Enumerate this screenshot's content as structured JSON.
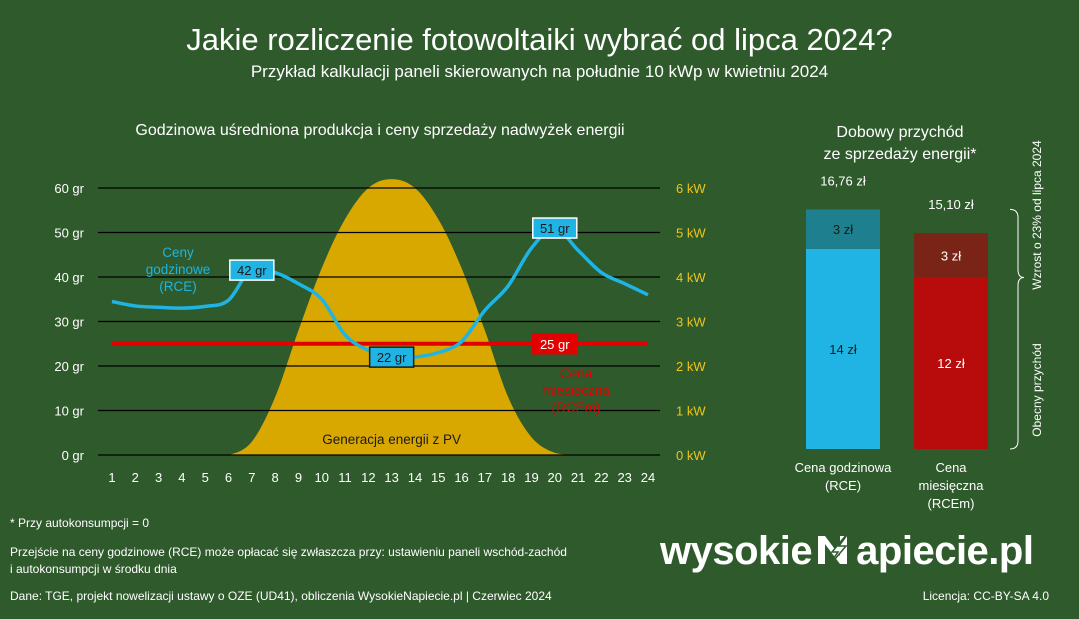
{
  "header": {
    "title": "Jakie rozliczenie fotowoltaiki wybrać od lipca 2024?",
    "subtitle": "Przykład kalkulacji paneli skierowanych na południe 10 kWp w kwietniu 2024"
  },
  "colors": {
    "background": "#2f5a2c",
    "rce": "#1fb4e3",
    "rce_bar_top": "#1e7f8e",
    "rcem": "#e30000",
    "rcem_bar": "#b80c0c",
    "rcem_bar_top": "#7a2418",
    "pv": "#d9a800",
    "kw_axis": "#f0c419"
  },
  "chart_data": [
    {
      "type": "area",
      "title": "Godzinowa uśredniona produkcja i ceny sprzedaży nadwyżek energii",
      "x": [
        1,
        2,
        3,
        4,
        5,
        6,
        7,
        8,
        9,
        10,
        11,
        12,
        13,
        14,
        15,
        16,
        17,
        18,
        19,
        20,
        21,
        22,
        23,
        24
      ],
      "xlim": [
        1,
        24
      ],
      "y_left": {
        "ticks": [
          "0 gr",
          "10 gr",
          "20 gr",
          "30 gr",
          "40 gr",
          "50 gr",
          "60 gr"
        ],
        "ylim": [
          0,
          60
        ]
      },
      "y_right": {
        "ticks": [
          "0 kW",
          "1 kW",
          "2 kW",
          "3 kW",
          "4 kW",
          "5 kW",
          "6 kW"
        ],
        "ylim": [
          0,
          6
        ]
      },
      "grid": true,
      "series": [
        {
          "name": "Generacja energii z PV",
          "kind": "area",
          "axis": "right",
          "values": [
            0,
            0,
            0,
            0,
            0,
            0,
            0.3,
            1.3,
            2.8,
            4.2,
            5.3,
            6.0,
            6.2,
            6.0,
            5.3,
            4.2,
            2.8,
            1.3,
            0.4,
            0.05,
            0,
            0,
            0,
            0
          ]
        },
        {
          "name": "Ceny godzinowe (RCE)",
          "kind": "line",
          "axis": "left",
          "values": [
            34.5,
            33.5,
            33.2,
            33.0,
            33.4,
            34.8,
            42.0,
            41.0,
            38.5,
            35.0,
            27.0,
            23.5,
            21.8,
            22.0,
            23.0,
            25.5,
            32.5,
            38.0,
            46.5,
            51.0,
            46.0,
            41.0,
            38.5,
            36.0
          ]
        },
        {
          "name": "Cena miesięczna (RCEm)",
          "kind": "line",
          "axis": "left",
          "values": [
            25,
            25,
            25,
            25,
            25,
            25,
            25,
            25,
            25,
            25,
            25,
            25,
            25,
            25,
            25,
            25,
            25,
            25,
            25,
            25,
            25,
            25,
            25,
            25
          ]
        }
      ],
      "annotations": {
        "rce_label_lines": [
          "Ceny",
          "godzinowe",
          "(RCE)"
        ],
        "rcem_label_lines": [
          "Cena",
          "miesięczna",
          "(RCEm)"
        ],
        "pv_label": "Generacja energii z PV",
        "rce_max": {
          "x": 20,
          "y": 51,
          "label": "51 gr"
        },
        "rce_min": {
          "x": 13,
          "y": 22,
          "label": "22 gr"
        },
        "rce_local": {
          "x": 7,
          "y": 42,
          "label": "42 gr"
        },
        "rcem_value": {
          "x": 20,
          "y": 25,
          "label": "25 gr"
        }
      }
    },
    {
      "type": "bar",
      "title_lines": [
        "Dobowy przychód",
        "ze sprzedaży energii*"
      ],
      "categories": [
        "Cena godzinowa (RCE)",
        "Cena miesięczna (RCEm)"
      ],
      "category_lines": [
        [
          "Cena godzinowa",
          "(RCE)"
        ],
        [
          "Cena",
          "miesięczna",
          "(RCEm)"
        ]
      ],
      "totals": [
        16.76,
        15.1
      ],
      "total_labels": [
        "16,76 zł",
        "15,10 zł"
      ],
      "series": [
        {
          "name": "Obecny przychód",
          "values": [
            14,
            12
          ],
          "labels": [
            "14 zł",
            "12 zł"
          ]
        },
        {
          "name": "Wzrost o 23% od lipca 2024",
          "values": [
            3,
            3
          ],
          "labels": [
            "3 zł",
            "3 zł"
          ]
        }
      ],
      "ylim": [
        0,
        17
      ]
    }
  ],
  "footer": {
    "note_autoconsumption": "* Przy autokonsumpcji = 0",
    "note_line1": "Przejście na ceny godzinowe (RCE) może opłacać się zwłaszcza przy: ustawieniu paneli wschód-zachód",
    "note_line2": "i autokonsumpcji w środku dnia",
    "source": "Dane: TGE, projekt nowelizacji ustawy o OZE (UD41), obliczenia WysokieNapiecie.pl  |  Czerwiec 2024",
    "license": "Licencja: CC-BY-SA 4.0",
    "logo_left": "wysokie",
    "logo_right": "apiecie.pl"
  }
}
